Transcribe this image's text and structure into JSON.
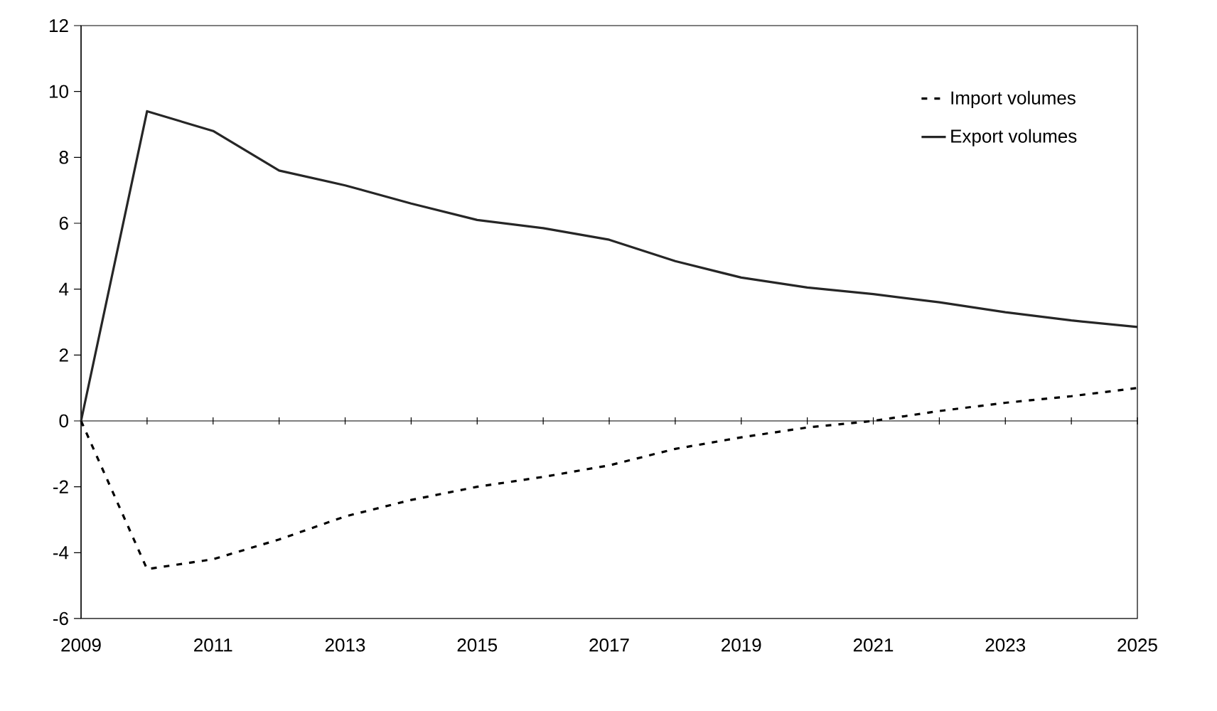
{
  "chart_data": {
    "type": "line",
    "x": [
      2009,
      2010,
      2011,
      2012,
      2013,
      2014,
      2015,
      2016,
      2017,
      2018,
      2019,
      2020,
      2021,
      2022,
      2023,
      2024,
      2025
    ],
    "series": [
      {
        "name": "Import volumes",
        "color": "#000000",
        "line_style": "dashed",
        "values": [
          0,
          -4.5,
          -4.2,
          -3.6,
          -2.9,
          -2.4,
          -2.0,
          -1.7,
          -1.35,
          -0.85,
          -0.5,
          -0.2,
          0.0,
          0.3,
          0.55,
          0.75,
          1.0
        ]
      },
      {
        "name": "Export volumes",
        "color": "#262626",
        "line_style": "solid",
        "values": [
          0,
          9.4,
          8.8,
          7.6,
          7.15,
          6.6,
          6.1,
          5.85,
          5.5,
          4.85,
          4.35,
          4.05,
          3.85,
          3.6,
          3.3,
          3.05,
          2.85
        ]
      }
    ],
    "xlim": [
      2009,
      2025
    ],
    "xticks": [
      2009,
      {
        "value": 2010,
        "label": null
      },
      2011,
      {
        "value": 2012,
        "label": null
      },
      2013,
      {
        "value": 2014,
        "label": null
      },
      2015,
      {
        "value": 2016,
        "label": null
      },
      2017,
      {
        "value": 2018,
        "label": null
      },
      2019,
      {
        "value": 2020,
        "label": null
      },
      2021,
      {
        "value": 2022,
        "label": null
      },
      2023,
      {
        "value": 2024,
        "label": null
      },
      2025
    ],
    "ylim": [
      -6,
      12
    ],
    "yticks": [
      -6,
      -4,
      -2,
      0,
      2,
      4,
      6,
      8,
      10,
      12
    ],
    "legend": "top right",
    "marker": "none"
  }
}
